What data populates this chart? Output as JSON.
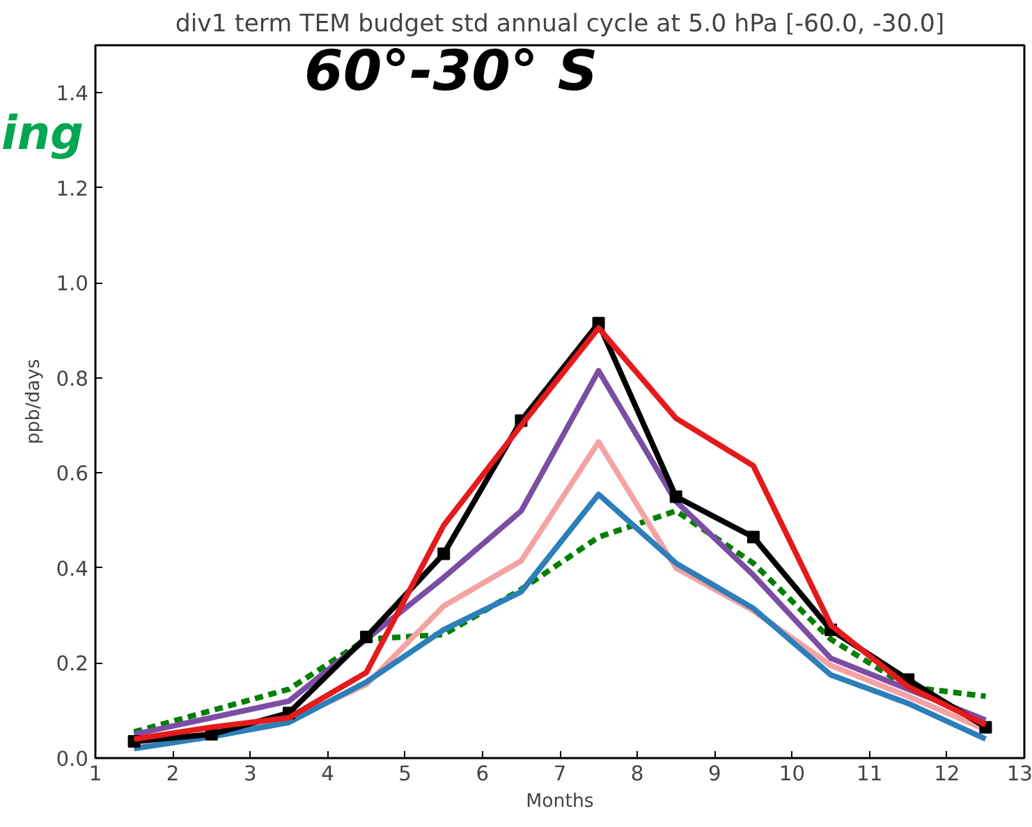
{
  "chart_data": {
    "type": "line",
    "title": "div1 term TEM budget std annual cycle at 5.0 hPa [-60.0, -30.0]",
    "xlabel": "Months",
    "ylabel": "ppb/days",
    "x": [
      1.5,
      2.5,
      3.5,
      4.5,
      5.5,
      6.5,
      7.5,
      8.5,
      9.5,
      10.5,
      11.5,
      12.5
    ],
    "series": [
      {
        "color": "#008000",
        "line_style": "dashed",
        "values": [
          0.055,
          0.1,
          0.145,
          0.25,
          0.26,
          0.355,
          0.465,
          0.52,
          0.41,
          0.25,
          0.15,
          0.13
        ]
      },
      {
        "color": "#f4a3a3",
        "values": [
          0.03,
          0.055,
          0.08,
          0.155,
          0.32,
          0.415,
          0.665,
          0.4,
          0.31,
          0.195,
          0.13,
          0.06
        ]
      },
      {
        "color": "#7b4ea3",
        "values": [
          0.05,
          0.085,
          0.12,
          0.25,
          0.38,
          0.52,
          0.815,
          0.54,
          0.385,
          0.21,
          0.145,
          0.08
        ]
      },
      {
        "color": "#2c7fb8",
        "values": [
          0.02,
          0.045,
          0.075,
          0.16,
          0.27,
          0.35,
          0.555,
          0.41,
          0.315,
          0.175,
          0.115,
          0.04
        ]
      },
      {
        "color": "#000000",
        "marker": "square",
        "values": [
          0.035,
          0.05,
          0.095,
          0.255,
          0.43,
          0.71,
          0.915,
          0.55,
          0.465,
          0.27,
          0.165,
          0.065
        ]
      },
      {
        "color": "#e41a1c",
        "values": [
          0.04,
          0.065,
          0.085,
          0.18,
          0.49,
          0.7,
          0.905,
          0.715,
          0.615,
          0.28,
          0.15,
          0.07
        ]
      }
    ],
    "xlim": [
      1,
      13
    ],
    "xticks": [
      1,
      2,
      3,
      4,
      5,
      6,
      7,
      8,
      9,
      10,
      11,
      12,
      13
    ],
    "ylim": [
      0,
      1.5
    ],
    "yticks": [
      {
        "value": 0,
        "label": "0.0"
      },
      0.2,
      0.4,
      0.6,
      0.8,
      {
        "value": 1.0,
        "label": "1.0"
      },
      1.2,
      1.4
    ],
    "annotations": [
      "60°-30° S",
      "ing"
    ],
    "grid": false,
    "marker": "none",
    "line_style": "solid"
  }
}
